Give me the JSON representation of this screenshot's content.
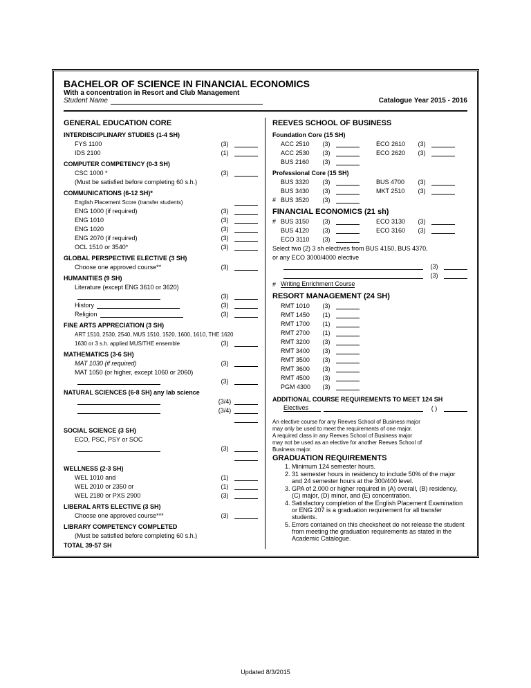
{
  "header": {
    "title": "BACHELOR OF SCIENCE IN FINANCIAL ECONOMICS",
    "subtitle": "With a concentration in Resort and Club Management",
    "studentLabel": "Student Name",
    "catalogue": "Catalogue Year 2015 - 2016"
  },
  "left": {
    "title": "GENERAL EDUCATION CORE",
    "groups": [
      {
        "h": "INTERDISCIPLINARY STUDIES (1-4 SH)",
        "rows": [
          {
            "t": "FYS 1100",
            "c": "(3)"
          },
          {
            "t": "IDS 2100",
            "c": "(1)"
          }
        ]
      },
      {
        "h": "COMPUTER COMPETENCY (0-3 SH)",
        "rows": [
          {
            "t": "CSC 1000 *",
            "c": "(3)"
          },
          {
            "t": "(Must be satisfied before completing 60 s.h.)",
            "nob": true
          }
        ]
      },
      {
        "h": "COMMUNICATIONS (6-12 SH)*",
        "rows": [
          {
            "t": "English Placement Score (transfer students)",
            "small": true,
            "c": "",
            "b": true
          },
          {
            "t": "ENG 1000 (if required)",
            "c": "(3)"
          },
          {
            "t": "ENG 1010",
            "c": "(3)"
          },
          {
            "t": "ENG 1020",
            "c": "(3)"
          },
          {
            "t": "ENG 2070 (if required)",
            "c": "(3)"
          },
          {
            "t": "OCL 1510 or 3540*",
            "c": "(3)"
          }
        ]
      },
      {
        "h": "GLOBAL PERSPECTIVE ELECTIVE (3 SH)",
        "rows": [
          {
            "t": "Choose one approved course**",
            "c": "(3)"
          }
        ]
      },
      {
        "h": "HUMANITIES (9 SH)",
        "rows": [
          {
            "t": "Literature (except ENG 3610 or 3620)",
            "nob": true
          },
          {
            "long": true,
            "c": "(3)"
          },
          {
            "t": "History",
            "long": true,
            "c": "(3)"
          },
          {
            "t": "Religion",
            "long": true,
            "c": "(3)"
          }
        ]
      },
      {
        "h": "FINE ARTS APPRECIATION (3 SH)",
        "rows": [
          {
            "t": "ART 1510, 2530, 2540, MUS 1510, 1520, 1600, 1610, THE 1620",
            "small": true,
            "nob": true
          },
          {
            "t": "1630 or 3 s.h. applied MUS/THE ensemble",
            "small": true,
            "c": "(3)"
          }
        ]
      },
      {
        "h": "MATHEMATICS (3-6 SH)",
        "rows": [
          {
            "t": "MAT 1030 (if required)",
            "it": true,
            "c": "(3)"
          },
          {
            "t": "MAT 1050 (or higher, except 1060 or 2060)",
            "nob": true
          },
          {
            "long": true,
            "c": "(3)"
          }
        ]
      },
      {
        "h": "NATURAL SCIENCES (6-8 SH) any lab science",
        "rows": [
          {
            "long": true,
            "c": "(3/4)"
          },
          {
            "long": true,
            "c": "(3/4)"
          },
          {
            "c": "",
            "b": true,
            "rt": true
          }
        ]
      },
      {
        "h": "SOCIAL SCIENCE (3 SH)",
        "rows": [
          {
            "t": "ECO, PSC, PSY or SOC",
            "nob": true
          },
          {
            "long": true,
            "c": "(3)"
          },
          {
            "c": "",
            "b": true,
            "rt": true
          }
        ]
      },
      {
        "h": "WELLNESS (2-3 SH)",
        "rows": [
          {
            "t": "WEL 1010 and",
            "c": "(1)"
          },
          {
            "t": "WEL 2010 or 2350 or",
            "c": "(1)"
          },
          {
            "t": "WEL 2180 or PXS 2900",
            "c": "(3)"
          }
        ]
      },
      {
        "h": "LIBERAL ARTS ELECTIVE (3 SH)",
        "rows": [
          {
            "t": "Choose one approved course***",
            "c": "(3)"
          }
        ]
      },
      {
        "h": "LIBRARY COMPETENCY COMPLETED",
        "rows": [
          {
            "t": "(Must be satisfied before completing 60 s.h.)",
            "nob": true
          }
        ]
      }
    ],
    "total": "TOTAL  39-57 SH"
  },
  "right": {
    "title": "REEVES SCHOOL OF BUSINESS",
    "foundation": {
      "h": "Foundation Core (15 SH)",
      "pairs": [
        [
          {
            "t": "ACC 2510",
            "c": "(3)"
          },
          {
            "t": "ECO 2610",
            "c": "(3)"
          }
        ],
        [
          {
            "t": "ACC 2530",
            "c": "(3)"
          },
          {
            "t": "ECO 2620",
            "c": "(3)"
          }
        ],
        [
          {
            "t": "BUS 2160",
            "c": "(3)"
          },
          null
        ]
      ]
    },
    "professional": {
      "h": "Professional Core (15 SH)",
      "pairs": [
        [
          {
            "t": "BUS 3320",
            "c": "(3)"
          },
          {
            "t": "BUS 4700",
            "c": "(3)"
          }
        ],
        [
          {
            "t": "BUS 3430",
            "c": "(3)"
          },
          {
            "t": "MKT 2510",
            "c": "(3)"
          }
        ],
        [
          {
            "t": "BUS 3520",
            "c": "(3)",
            "hash": "#"
          },
          null
        ]
      ]
    },
    "finecon": {
      "h": "FINANCIAL ECONOMICS (21 sh)",
      "pairs": [
        [
          {
            "t": "BUS 3150",
            "c": "(3)",
            "hash": "#"
          },
          {
            "t": "ECO 3130",
            "c": "(3)"
          }
        ],
        [
          {
            "t": "BUS 4120",
            "c": "(3)"
          },
          {
            "t": "ECO 3160",
            "c": "(3)"
          }
        ],
        [
          {
            "t": "ECO 3110",
            "c": "(3)"
          },
          null
        ]
      ],
      "note1": "Select two (2) 3 sh electives from BUS 4150, BUS 4370,",
      "note2": "or any ECO 3000/4000 elective",
      "elec": [
        {
          "c": "(3)"
        },
        {
          "c": "(3)"
        }
      ],
      "wec": "Writing Enrichment Course",
      "wecHash": "#"
    },
    "resort": {
      "h": "RESORT MANAGEMENT (24 SH)",
      "rows": [
        {
          "t": "RMT 1010",
          "c": "(3)"
        },
        {
          "t": "RMT 1450",
          "c": "(1)"
        },
        {
          "t": "RMT 1700",
          "c": "(1)"
        },
        {
          "t": "RMT 2700",
          "c": "(1)"
        },
        {
          "t": "RMT 3200",
          "c": "(3)"
        },
        {
          "t": "RMT 3400",
          "c": "(3)"
        },
        {
          "t": "RMT 3500",
          "c": "(3)"
        },
        {
          "t": "RMT 3600",
          "c": "(3)"
        },
        {
          "t": "RMT 4500",
          "c": "(3)"
        },
        {
          "t": "PGM 4300",
          "c": "(3)"
        }
      ]
    },
    "addl": {
      "h": "ADDITIONAL COURSE REQUIREMENTS TO MEET 124 SH",
      "elecLabel": "Electives",
      "elecCr": "( )"
    },
    "notes": [
      "An elective course for any Reeves School of Business major",
      "may only be used to meet the requirements of one major.",
      "A required class in any Reeves School of Business major",
      "may not be used as an elective for another Reeves School of",
      "Business major."
    ],
    "grad": {
      "h": "GRADUATION REQUIREMENTS",
      "items": [
        "Minimum 124 semester hours.",
        "31 semester hours in residency to include 50% of the major and 24 semester hours at the 300/400 level.",
        "GPA of 2.000 or higher required in (A) overall, (B) residency, (C) major, (D) minor, and (E) concentration.",
        "Satisfactory completion of the English Placement Examination or ENG 207 is a graduation requirement for all transfer students.",
        "Errors contained on this checksheet do not release the student from meeting the graduation requirements as stated in the Academic Catalogue."
      ]
    }
  },
  "footer": "Updated 8/3/2015"
}
